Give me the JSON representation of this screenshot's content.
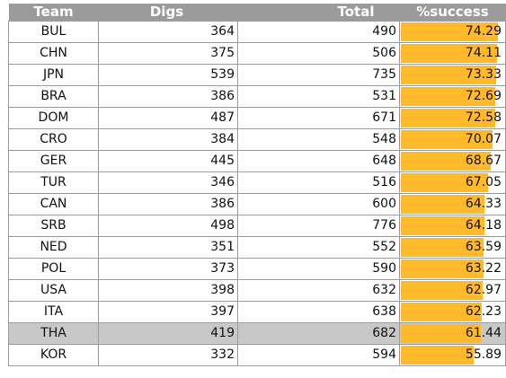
{
  "chart_data": {
    "type": "table",
    "columns": [
      "Team",
      "Digs",
      "Total",
      "%success"
    ],
    "rows": [
      {
        "team": "BUL",
        "digs": "364",
        "total": "490",
        "success": "74.29"
      },
      {
        "team": "CHN",
        "digs": "375",
        "total": "506",
        "success": "74.11"
      },
      {
        "team": "JPN",
        "digs": "539",
        "total": "735",
        "success": "73.33"
      },
      {
        "team": "BRA",
        "digs": "386",
        "total": "531",
        "success": "72.69"
      },
      {
        "team": "DOM",
        "digs": "487",
        "total": "671",
        "success": "72.58"
      },
      {
        "team": "CRO",
        "digs": "384",
        "total": "548",
        "success": "70.07"
      },
      {
        "team": "GER",
        "digs": "445",
        "total": "648",
        "success": "68.67"
      },
      {
        "team": "TUR",
        "digs": "346",
        "total": "516",
        "success": "67.05"
      },
      {
        "team": "CAN",
        "digs": "386",
        "total": "600",
        "success": "64.33"
      },
      {
        "team": "SRB",
        "digs": "498",
        "total": "776",
        "success": "64.18"
      },
      {
        "team": "NED",
        "digs": "351",
        "total": "552",
        "success": "63.59"
      },
      {
        "team": "POL",
        "digs": "373",
        "total": "590",
        "success": "63.22"
      },
      {
        "team": "USA",
        "digs": "398",
        "total": "632",
        "success": "62.97"
      },
      {
        "team": "ITA",
        "digs": "397",
        "total": "638",
        "success": "62.23"
      },
      {
        "team": "THA",
        "digs": "419",
        "total": "682",
        "success": "61.44",
        "highlighted": true
      },
      {
        "team": "KOR",
        "digs": "332",
        "total": "594",
        "success": "55.89"
      }
    ],
    "data_bar_range": [
      0,
      80
    ],
    "colors": {
      "header": "#9b9b9b",
      "data_bar": "#ffb92b",
      "highlight_row": "#c8c8c8"
    }
  }
}
